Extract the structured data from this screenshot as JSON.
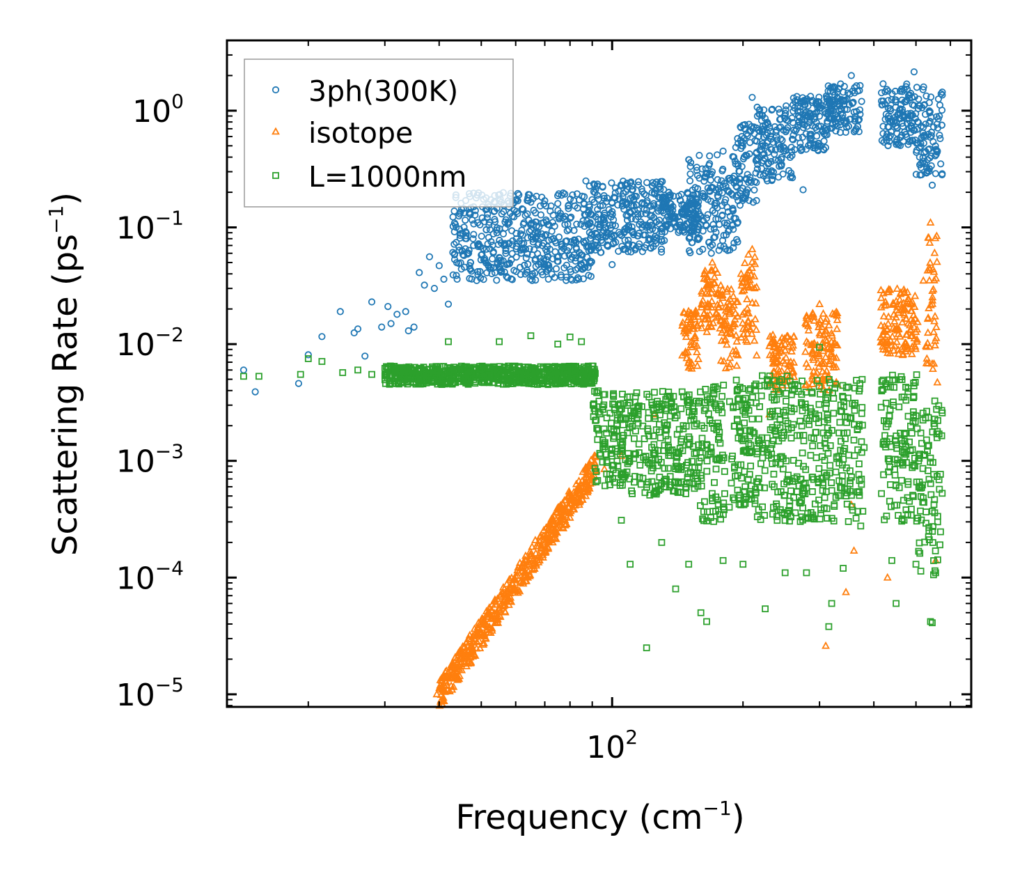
{
  "chart_data": {
    "type": "scatter",
    "title": "",
    "xlabel": {
      "main": "Frequency (cm",
      "sup": "−1",
      "tail": ")"
    },
    "ylabel": {
      "main": "Scattering Rate (ps",
      "sup": "−1",
      "tail": ")"
    },
    "xscale": "log",
    "yscale": "log",
    "xlim": [
      13,
      670
    ],
    "ylim": [
      7.8e-06,
      4.0
    ],
    "x_ticks": [
      {
        "value": 100,
        "base": "10",
        "exp": "2"
      }
    ],
    "y_ticks": [
      {
        "value": 1,
        "base": "10",
        "exp": "0"
      },
      {
        "value": 0.1,
        "base": "10",
        "exp": "−1"
      },
      {
        "value": 0.01,
        "base": "10",
        "exp": "−2"
      },
      {
        "value": 0.001,
        "base": "10",
        "exp": "−3"
      },
      {
        "value": 0.0001,
        "base": "10",
        "exp": "−4"
      },
      {
        "value": 1e-05,
        "base": "10",
        "exp": "−5"
      }
    ],
    "legend_position": "top-left",
    "series": [
      {
        "name": "3ph(300K)",
        "marker": "circle",
        "color": "#1f77b4",
        "points": [
          [
            14.2,
            0.006
          ],
          [
            15.1,
            0.0039
          ],
          [
            19,
            0.0046
          ],
          [
            20,
            0.0081
          ],
          [
            21.5,
            0.0116
          ],
          [
            23.7,
            0.019
          ],
          [
            25.5,
            0.0125
          ],
          [
            26,
            0.0135
          ],
          [
            27,
            0.0079
          ],
          [
            28,
            0.023
          ],
          [
            29.5,
            0.014
          ],
          [
            30.5,
            0.021
          ],
          [
            31,
            0.015
          ],
          [
            32,
            0.018
          ],
          [
            33.5,
            0.019
          ],
          [
            34,
            0.013
          ],
          [
            35,
            0.014
          ],
          [
            36,
            0.041
          ],
          [
            37,
            0.032
          ],
          [
            38,
            0.056
          ],
          [
            39,
            0.03
          ],
          [
            40,
            0.047
          ],
          [
            41,
            0.036
          ],
          [
            42,
            0.022
          ],
          [
            43,
            0.061
          ],
          [
            44,
            0.036
          ],
          [
            45,
            0.044
          ],
          [
            46,
            0.092
          ],
          [
            47,
            0.047
          ],
          [
            48,
            0.07
          ],
          [
            50,
            0.058
          ],
          [
            52,
            0.082
          ],
          [
            55,
            0.052
          ],
          [
            58,
            0.11
          ],
          [
            62,
            0.066
          ],
          [
            66,
            0.14
          ],
          [
            70,
            0.085
          ],
          [
            75,
            0.16
          ],
          [
            80,
            0.12
          ],
          [
            87,
            0.25
          ],
          [
            93,
            0.13
          ],
          [
            100,
            0.048
          ],
          [
            110,
            0.24
          ],
          [
            120,
            0.1
          ],
          [
            135,
            0.2
          ],
          [
            150,
            0.38
          ],
          [
            165,
            0.12
          ],
          [
            180,
            0.45
          ],
          [
            200,
            0.75
          ],
          [
            210,
            1.3
          ],
          [
            225,
            0.5
          ],
          [
            250,
            0.9
          ],
          [
            275,
            0.21
          ],
          [
            300,
            1.05
          ],
          [
            330,
            1.45
          ],
          [
            355,
            2.0
          ],
          [
            375,
            1.2
          ],
          [
            420,
            1.7
          ],
          [
            460,
            0.95
          ],
          [
            495,
            2.15
          ],
          [
            520,
            0.6
          ],
          [
            545,
            0.23
          ],
          [
            560,
            0.45
          ],
          [
            570,
            0.35
          ]
        ],
        "bands": [
          {
            "x": [
              43,
              90
            ],
            "y": [
              0.035,
              0.2
            ]
          },
          {
            "x": [
              88,
              132
            ],
            "y": [
              0.06,
              0.25
            ]
          },
          {
            "x": [
              130,
              158
            ],
            "y": [
              0.09,
              0.2
            ]
          },
          {
            "x": [
              150,
              195
            ],
            "y": [
              0.06,
              0.42
            ]
          },
          {
            "x": [
              192,
              215
            ],
            "y": [
              0.15,
              0.8
            ]
          },
          {
            "x": [
              215,
              262
            ],
            "y": [
              0.25,
              1.1
            ]
          },
          {
            "x": [
              260,
              312
            ],
            "y": [
              0.45,
              1.35
            ]
          },
          {
            "x": [
              310,
              372
            ],
            "y": [
              0.65,
              1.7
            ]
          },
          {
            "x": [
              415,
              500
            ],
            "y": [
              0.5,
              1.7
            ]
          },
          {
            "x": [
              498,
              575
            ],
            "y": [
              0.28,
              1.6
            ]
          }
        ]
      },
      {
        "name": "isotope",
        "marker": "triangle",
        "color": "#ff7f0e",
        "points": [
          [
            39.5,
            1e-05
          ],
          [
            41,
            1.2e-05
          ],
          [
            43,
            1.4e-05
          ],
          [
            45,
            1.9e-05
          ],
          [
            47,
            2.4e-05
          ],
          [
            50,
            3.4e-05
          ],
          [
            53,
            4.5e-05
          ],
          [
            56,
            5.8e-05
          ],
          [
            60,
            8e-05
          ],
          [
            64,
            0.0001
          ],
          [
            68,
            0.00014
          ],
          [
            73,
            0.0002
          ],
          [
            78,
            0.00028
          ],
          [
            84,
            0.00042
          ],
          [
            90,
            0.00065
          ],
          [
            96,
            0.00085
          ],
          [
            105,
            0.0011
          ],
          [
            125,
            0.0025
          ],
          [
            145,
            0.008
          ],
          [
            160,
            0.015
          ],
          [
            170,
            0.05
          ],
          [
            185,
            0.02
          ],
          [
            198,
            0.04
          ],
          [
            210,
            0.065
          ],
          [
            215,
            0.008
          ],
          [
            230,
            0.0025
          ],
          [
            250,
            0.01
          ],
          [
            280,
            0.0045
          ],
          [
            300,
            0.022
          ],
          [
            310,
            2.6e-05
          ],
          [
            330,
            0.0045
          ],
          [
            345,
            7.5e-05
          ],
          [
            355,
            0.00042
          ],
          [
            360,
            0.00017
          ],
          [
            420,
            0.012
          ],
          [
            430,
            0.0001
          ],
          [
            480,
            0.015
          ],
          [
            520,
            0.035
          ],
          [
            540,
            0.11
          ],
          [
            550,
            0.0068
          ],
          [
            555,
            0.00014
          ],
          [
            560,
            0.0047
          ]
        ],
        "bands": [
          {
            "x": [
              40,
              92
            ],
            "y": [
              1e-05,
              0.0009
            ],
            "trend": "power"
          },
          {
            "x": [
              145,
              158
            ],
            "y": [
              0.006,
              0.02
            ]
          },
          {
            "x": [
              160,
              178
            ],
            "y": [
              0.012,
              0.045
            ]
          },
          {
            "x": [
              178,
              195
            ],
            "y": [
              0.006,
              0.03
            ]
          },
          {
            "x": [
              198,
              215
            ],
            "y": [
              0.01,
              0.06
            ]
          },
          {
            "x": [
              230,
              262
            ],
            "y": [
              0.004,
              0.012
            ]
          },
          {
            "x": [
              278,
              330
            ],
            "y": [
              0.004,
              0.02
            ]
          },
          {
            "x": [
              415,
              505
            ],
            "y": [
              0.008,
              0.03
            ]
          },
          {
            "x": [
              525,
              560
            ],
            "y": [
              0.005,
              0.09
            ]
          }
        ]
      },
      {
        "name": "L=1000nm",
        "marker": "square",
        "color": "#2ca02c",
        "points": [
          [
            14.2,
            0.0053
          ],
          [
            15.4,
            0.0053
          ],
          [
            19.2,
            0.0055
          ],
          [
            20,
            0.0075
          ],
          [
            21.5,
            0.0071
          ],
          [
            24,
            0.0057
          ],
          [
            26,
            0.006
          ],
          [
            28,
            0.0055
          ],
          [
            30,
            0.0062
          ],
          [
            33,
            0.0058
          ],
          [
            35,
            0.0055
          ],
          [
            38,
            0.0061
          ],
          [
            42,
            0.0105
          ],
          [
            45,
            0.0058
          ],
          [
            50,
            0.0062
          ],
          [
            55,
            0.0105
          ],
          [
            60,
            0.0055
          ],
          [
            65,
            0.0118
          ],
          [
            70,
            0.0052
          ],
          [
            75,
            0.01
          ],
          [
            80,
            0.0115
          ],
          [
            85,
            0.0105
          ],
          [
            90,
            0.0055
          ],
          [
            95,
            0.0029
          ],
          [
            100,
            0.0011
          ],
          [
            105,
            0.00031
          ],
          [
            110,
            0.00013
          ],
          [
            120,
            2.5e-05
          ],
          [
            130,
            0.0002
          ],
          [
            140,
            8e-05
          ],
          [
            150,
            0.00013
          ],
          [
            160,
            5e-05
          ],
          [
            165,
            4.2e-05
          ],
          [
            180,
            0.00014
          ],
          [
            200,
            0.00013
          ],
          [
            225,
            5.4e-05
          ],
          [
            250,
            0.00011
          ],
          [
            280,
            0.00011
          ],
          [
            300,
            0.0094
          ],
          [
            315,
            3.8e-05
          ],
          [
            320,
            6e-05
          ],
          [
            340,
            0.00012
          ],
          [
            380,
            0.0013
          ],
          [
            420,
            0.0041
          ],
          [
            440,
            0.00014
          ],
          [
            450,
            6e-05
          ],
          [
            500,
            0.00013
          ],
          [
            540,
            4.2e-05
          ],
          [
            545,
            4.1e-05
          ],
          [
            555,
            0.00011
          ]
        ],
        "bands": [
          {
            "x": [
              30,
              92
            ],
            "y": [
              0.0045,
              0.0065
            ]
          },
          {
            "x": [
              90,
              110
            ],
            "y": [
              0.0006,
              0.004
            ]
          },
          {
            "x": [
              110,
              158
            ],
            "y": [
              0.0005,
              0.004
            ]
          },
          {
            "x": [
              158,
              182
            ],
            "y": [
              0.0003,
              0.0045
            ]
          },
          {
            "x": [
              185,
              215
            ],
            "y": [
              0.0004,
              0.005
            ]
          },
          {
            "x": [
              215,
              270
            ],
            "y": [
              0.0003,
              0.0055
            ]
          },
          {
            "x": [
              270,
              330
            ],
            "y": [
              0.0003,
              0.005
            ]
          },
          {
            "x": [
              330,
              378
            ],
            "y": [
              0.00025,
              0.005
            ]
          },
          {
            "x": [
              415,
              505
            ],
            "y": [
              0.0003,
              0.0055
            ]
          },
          {
            "x": [
              505,
              575
            ],
            "y": [
              0.0001,
              0.0035
            ]
          }
        ]
      }
    ]
  }
}
